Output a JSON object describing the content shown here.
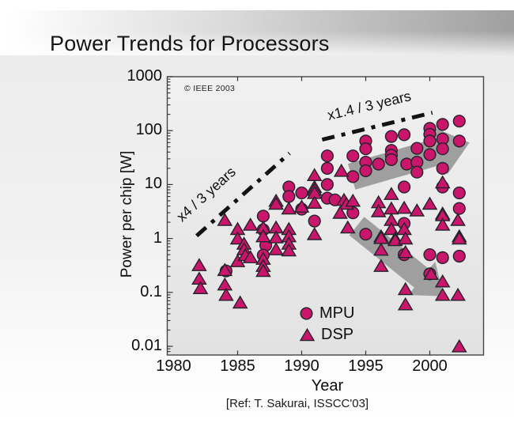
{
  "header": {
    "title": "Power Trends for Processors"
  },
  "caption": {
    "text": "[Ref: T. Sakurai, ISSCC'03]"
  },
  "chart_data": {
    "type": "scatter",
    "title": "",
    "xlabel": "Year",
    "ylabel": "Power per chip [W]",
    "copyright": "© IEEE 2003",
    "x_ticks": [
      1980,
      1985,
      1990,
      1995,
      2000
    ],
    "y_ticks": [
      1000,
      100,
      10,
      1,
      0.1,
      0.01
    ],
    "xlim": [
      1979.5,
      2004.2
    ],
    "ylim": [
      0.0068,
      1000
    ],
    "y_scale": "log",
    "grid": false,
    "legend_position": "inside-bottom-center",
    "colors": {
      "marker_fill": "#C9156A",
      "marker_stroke": "#23232B",
      "arrow": "#9B9B9B",
      "trend_line": "#121212",
      "plot_bg_top": "#F1F1F1",
      "plot_bg_bottom": "#E2E2E2"
    },
    "legend": [
      {
        "label": "MPU",
        "marker": "circle"
      },
      {
        "label": "DSP",
        "marker": "triangle"
      }
    ],
    "annotations": [
      {
        "text": "x4 / 3 years",
        "angle_deg": -42,
        "line": {
          "from": [
            1981.8,
            1.12
          ],
          "to": [
            1989.05,
            38
          ]
        }
      },
      {
        "text": "x1.4 / 3 years",
        "angle_deg": -13.5,
        "line": {
          "from": [
            1991.6,
            68
          ],
          "to": [
            2000.2,
            215
          ]
        }
      }
    ],
    "arrows": [
      {
        "name": "mpu-trend-arrow",
        "from": [
          1993.9,
          14
        ],
        "to": [
          2003.1,
          60
        ],
        "body_half_w": 17,
        "head_half_w": 31,
        "head_len": 38
      },
      {
        "name": "dsp-trend-arrow",
        "from": [
          1994.3,
          1.7
        ],
        "to": [
          2001.1,
          0.085
        ],
        "body_half_w": 15,
        "head_half_w": 27,
        "head_len": 36
      }
    ],
    "series": [
      {
        "name": "MPU",
        "marker": "circle",
        "points": [
          [
            1984.1,
            0.25
          ],
          [
            1987,
            2.6
          ],
          [
            1987,
            1.45
          ],
          [
            1987.2,
            0.75
          ],
          [
            1987,
            0.49
          ],
          [
            1989,
            9
          ],
          [
            1989,
            6
          ],
          [
            1990,
            7
          ],
          [
            1990,
            3.5
          ],
          [
            1991,
            2.1
          ],
          [
            1992,
            34
          ],
          [
            1992,
            20
          ],
          [
            1992,
            10
          ],
          [
            1992,
            5.6
          ],
          [
            1992.6,
            5.2
          ],
          [
            1994,
            34
          ],
          [
            1994,
            14
          ],
          [
            1994,
            3
          ],
          [
            1995,
            64
          ],
          [
            1995,
            46
          ],
          [
            1995,
            26
          ],
          [
            1995,
            18
          ],
          [
            1995,
            1.2
          ],
          [
            1996,
            24
          ],
          [
            1997,
            78
          ],
          [
            1997,
            43
          ],
          [
            1997,
            35
          ],
          [
            1997,
            29
          ],
          [
            1998,
            84
          ],
          [
            1998.2,
            24
          ],
          [
            1998,
            9
          ],
          [
            1998,
            1.9
          ],
          [
            1998,
            0.5
          ],
          [
            1999,
            47
          ],
          [
            1999,
            26
          ],
          [
            1999,
            17
          ],
          [
            2000,
            110
          ],
          [
            2000,
            85
          ],
          [
            2000,
            64
          ],
          [
            2000,
            36
          ],
          [
            2000,
            0.5
          ],
          [
            2000,
            0.22
          ],
          [
            2001,
            130
          ],
          [
            2001,
            70
          ],
          [
            2001,
            46
          ],
          [
            2001,
            20
          ],
          [
            2001,
            9
          ],
          [
            2001,
            0.44
          ],
          [
            2002.3,
            150
          ],
          [
            2002.3,
            64
          ],
          [
            2002.3,
            7
          ],
          [
            2002.3,
            3.6
          ],
          [
            2002.3,
            0.47
          ]
        ]
      },
      {
        "name": "DSP",
        "marker": "triangle",
        "points": [
          [
            1982,
            0.32
          ],
          [
            1982,
            0.18
          ],
          [
            1982.1,
            0.12
          ],
          [
            1984,
            2.2
          ],
          [
            1984,
            0.26
          ],
          [
            1984,
            0.14
          ],
          [
            1984.1,
            0.09
          ],
          [
            1985,
            1.5
          ],
          [
            1985,
            1.0
          ],
          [
            1985,
            0.38
          ],
          [
            1985.2,
            0.065
          ],
          [
            1985.5,
            0.8
          ],
          [
            1985.5,
            0.63
          ],
          [
            1985.6,
            0.49
          ],
          [
            1986,
            1.8
          ],
          [
            1986,
            0.45
          ],
          [
            1987,
            1.6
          ],
          [
            1987,
            1.1
          ],
          [
            1987,
            0.42
          ],
          [
            1987,
            0.31
          ],
          [
            1987,
            0.25
          ],
          [
            1988,
            5
          ],
          [
            1988,
            4.4
          ],
          [
            1988,
            1.6
          ],
          [
            1988,
            1.05
          ],
          [
            1988,
            0.63
          ],
          [
            1989,
            3.6
          ],
          [
            1989,
            1.5
          ],
          [
            1989,
            1.1
          ],
          [
            1989,
            0.8
          ],
          [
            1989,
            0.6
          ],
          [
            1990,
            3.9
          ],
          [
            1991,
            15
          ],
          [
            1991,
            9
          ],
          [
            1991,
            8
          ],
          [
            1991,
            7
          ],
          [
            1991,
            4.6
          ],
          [
            1991,
            1.2
          ],
          [
            1993.1,
            18
          ],
          [
            1993.3,
            5.2
          ],
          [
            1993.5,
            4.4
          ],
          [
            1993,
            3
          ],
          [
            1994,
            5
          ],
          [
            1993.6,
            1.6
          ],
          [
            1996,
            4.7
          ],
          [
            1996,
            3.2
          ],
          [
            1996.2,
            1.1
          ],
          [
            1996.2,
            1.02
          ],
          [
            1996.2,
            0.62
          ],
          [
            1996.2,
            0.31
          ],
          [
            1997,
            6.7
          ],
          [
            1997,
            3.6
          ],
          [
            1997,
            2.2
          ],
          [
            1997,
            1.5
          ],
          [
            1997.3,
            1.0
          ],
          [
            1997.3,
            0.93
          ],
          [
            1998,
            3.7
          ],
          [
            1998,
            1.5
          ],
          [
            1998.1,
            1.0
          ],
          [
            1998.1,
            0.56
          ],
          [
            1998.1,
            0.115
          ],
          [
            1998.1,
            0.06
          ],
          [
            1999,
            3.3
          ],
          [
            2000,
            4.4
          ],
          [
            2000.1,
            0.22
          ],
          [
            2001,
            11
          ],
          [
            2001,
            2.9
          ],
          [
            2001,
            2.7
          ],
          [
            2001,
            1.8
          ],
          [
            2001,
            0.16
          ],
          [
            2001,
            0.09
          ],
          [
            2002.2,
            2.2
          ],
          [
            2002.3,
            1.1
          ],
          [
            2002.3,
            1.0
          ],
          [
            2002.2,
            0.09
          ],
          [
            2002.3,
            0.01
          ]
        ]
      }
    ]
  }
}
